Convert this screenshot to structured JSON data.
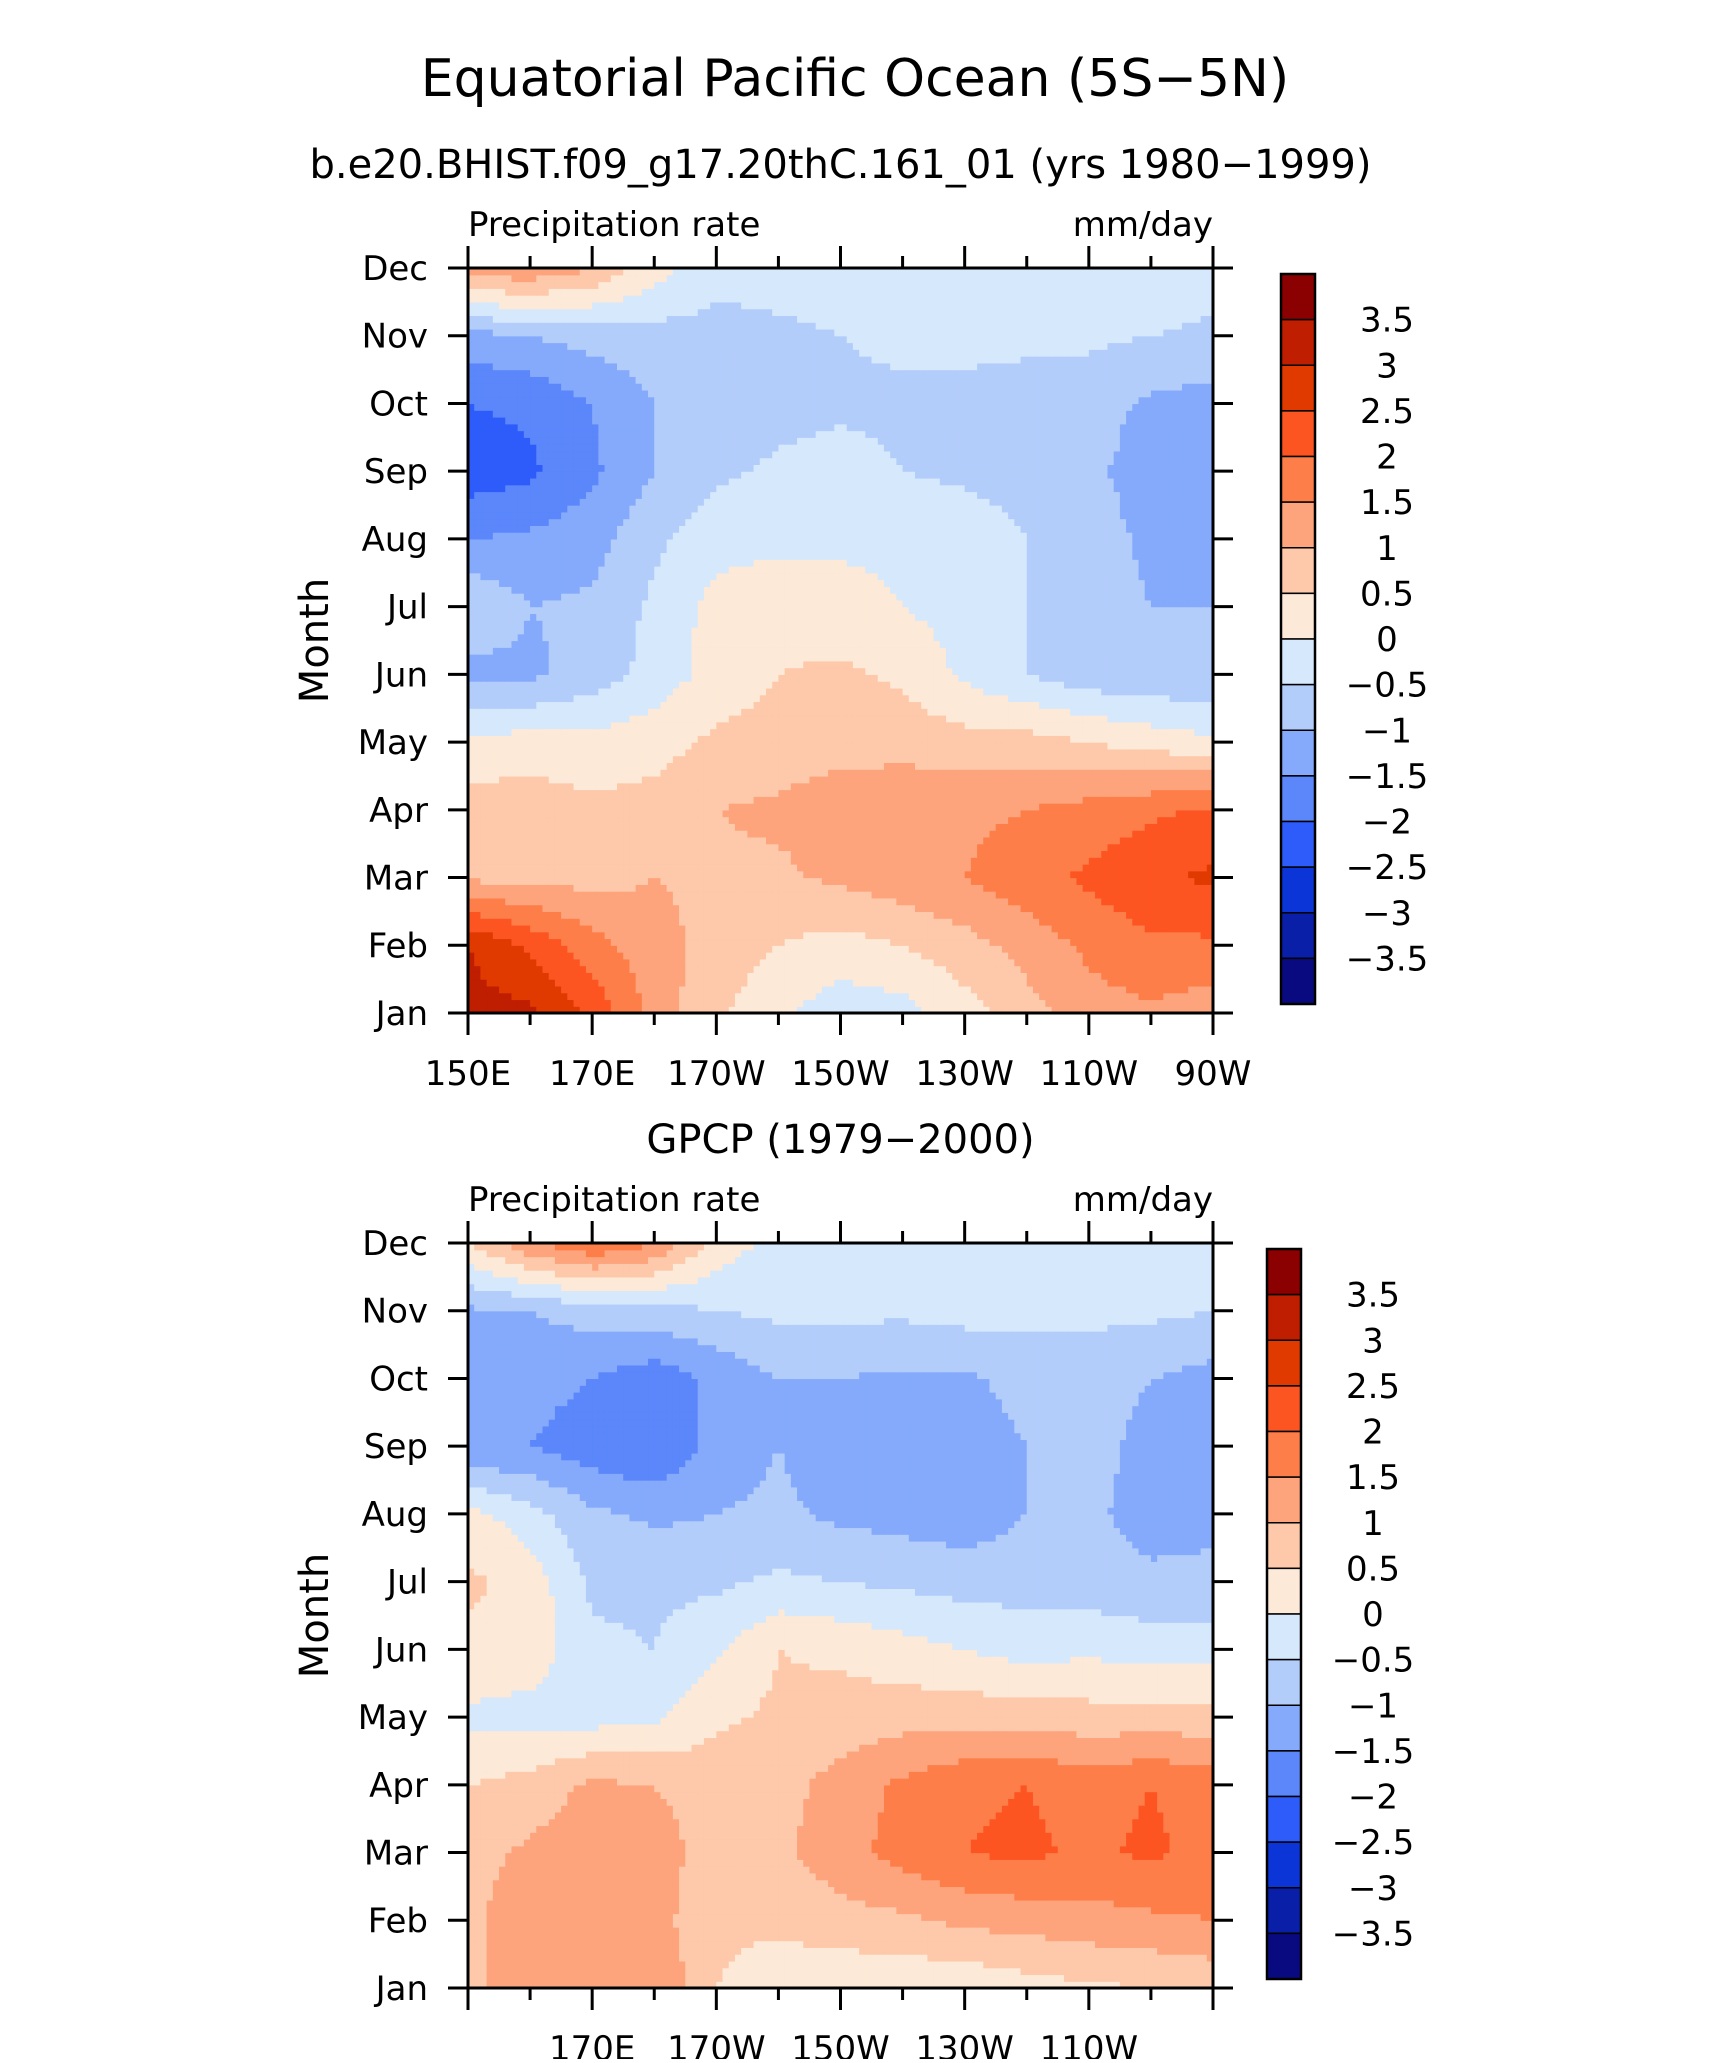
{
  "title": "Equatorial Pacific Ocean (5S−5N)",
  "chart_data": [
    {
      "type": "heatmap",
      "title": "b.e20.BHIST.f09_g17.20thC.161_01 (yrs 1980−1999)",
      "left_label": "Precipitation rate",
      "right_label": "mm/day",
      "ylabel": "Month",
      "xlabel": "",
      "x_ticks": [
        "150E",
        "170E",
        "170W",
        "150W",
        "130W",
        "110W",
        "90W"
      ],
      "x_tick_lon": [
        150,
        170,
        190,
        210,
        230,
        250,
        270
      ],
      "xlim": [
        150,
        270
      ],
      "y_ticks": [
        "Jan",
        "Feb",
        "Mar",
        "Apr",
        "May",
        "Jun",
        "Jul",
        "Aug",
        "Sep",
        "Oct",
        "Nov",
        "Dec"
      ],
      "grid_lon": [
        150,
        160,
        170,
        180,
        190,
        200,
        210,
        220,
        230,
        240,
        250,
        260,
        270
      ],
      "values": [
        [
          3.2,
          3.1,
          2.4,
          1.3,
          0.6,
          0.1,
          -0.3,
          -0.2,
          0.3,
          0.8,
          1.3,
          1.4,
          1.2
        ],
        [
          3.0,
          2.4,
          1.7,
          1.2,
          0.8,
          0.5,
          0.3,
          0.5,
          0.8,
          1.2,
          1.6,
          1.9,
          1.9
        ],
        [
          0.9,
          0.9,
          0.8,
          1.0,
          0.9,
          0.9,
          1.1,
          1.3,
          1.5,
          1.8,
          2.1,
          2.4,
          2.6
        ],
        [
          0.7,
          0.8,
          0.6,
          0.7,
          1.0,
          1.1,
          1.3,
          1.4,
          1.4,
          1.5,
          1.7,
          1.9,
          2.1
        ],
        [
          0.2,
          0.2,
          0.2,
          0.3,
          0.6,
          0.7,
          0.8,
          0.8,
          0.7,
          0.7,
          0.5,
          0.3,
          0.1
        ],
        [
          -1.2,
          -1.1,
          -0.8,
          -0.3,
          0.2,
          0.5,
          0.6,
          0.4,
          -0.1,
          -0.5,
          -0.8,
          -0.9,
          -0.9
        ],
        [
          -0.5,
          -1.0,
          -0.9,
          -0.4,
          0.2,
          0.3,
          0.2,
          0.0,
          -0.2,
          -0.5,
          -0.8,
          -1.0,
          -1.0
        ],
        [
          -1.5,
          -1.4,
          -1.2,
          -0.6,
          -0.2,
          -0.1,
          -0.1,
          -0.1,
          -0.2,
          -0.5,
          -0.8,
          -1.1,
          -1.3
        ],
        [
          -2.3,
          -2.1,
          -1.6,
          -1.0,
          -0.6,
          -0.4,
          -0.3,
          -0.5,
          -0.6,
          -0.7,
          -0.9,
          -1.2,
          -1.3
        ],
        [
          -2.0,
          -1.9,
          -1.5,
          -1.0,
          -0.9,
          -0.7,
          -0.6,
          -0.6,
          -0.6,
          -0.7,
          -0.8,
          -1.1,
          -1.2
        ],
        [
          -1.2,
          -1.0,
          -0.8,
          -0.7,
          -0.7,
          -0.6,
          -0.5,
          -0.4,
          -0.4,
          -0.4,
          -0.4,
          -0.5,
          -0.6
        ],
        [
          1.3,
          1.4,
          1.0,
          0.2,
          -0.3,
          -0.3,
          -0.3,
          -0.3,
          -0.3,
          -0.3,
          -0.2,
          -0.2,
          -0.3
        ]
      ]
    },
    {
      "type": "heatmap",
      "title": "GPCP (1979−2000)",
      "left_label": "Precipitation rate",
      "right_label": "mm/day",
      "ylabel": "Month",
      "xlabel": "",
      "x_ticks": [
        "170E",
        "170W",
        "150W",
        "130W",
        "110W"
      ],
      "x_tick_lon": [
        170,
        190,
        210,
        230,
        250
      ],
      "xlim": [
        150,
        270
      ],
      "y_ticks": [
        "Jan",
        "Feb",
        "Mar",
        "Apr",
        "May",
        "Jun",
        "Jul",
        "Aug",
        "Sep",
        "Oct",
        "Nov",
        "Dec"
      ],
      "grid_lon": [
        150,
        160,
        170,
        180,
        190,
        200,
        210,
        220,
        230,
        240,
        250,
        260,
        270
      ],
      "values": [
        [
          0.9,
          1.2,
          1.5,
          1.5,
          0.5,
          0.2,
          0.1,
          0.1,
          0.1,
          0.3,
          0.4,
          0.5,
          0.6
        ],
        [
          0.9,
          1.3,
          1.4,
          1.2,
          0.6,
          0.6,
          0.8,
          0.9,
          1.1,
          1.2,
          1.3,
          1.4,
          1.5
        ],
        [
          0.8,
          1.1,
          1.3,
          1.2,
          0.8,
          0.9,
          1.3,
          1.7,
          2.0,
          2.1,
          1.9,
          2.1,
          1.8
        ],
        [
          0.5,
          0.7,
          1.1,
          1.0,
          0.8,
          0.8,
          1.2,
          1.6,
          1.9,
          2.0,
          1.8,
          2.0,
          1.8
        ],
        [
          -0.1,
          -0.2,
          -0.2,
          -0.1,
          0.4,
          0.6,
          0.7,
          0.8,
          0.8,
          0.8,
          0.7,
          0.7,
          0.7
        ],
        [
          0.4,
          0.3,
          -0.4,
          -0.5,
          -0.1,
          0.5,
          0.4,
          0.2,
          0.0,
          -0.2,
          -0.1,
          -0.2,
          -0.2
        ],
        [
          0.6,
          0.3,
          -0.6,
          -0.6,
          -0.6,
          -0.4,
          -0.5,
          -0.6,
          -0.7,
          -0.7,
          -0.8,
          -0.9,
          -0.9
        ],
        [
          0.2,
          -0.3,
          -0.9,
          -1.1,
          -1.0,
          -0.9,
          -1.1,
          -1.2,
          -1.3,
          -1.0,
          -0.9,
          -1.2,
          -1.1
        ],
        [
          -1.5,
          -1.5,
          -1.8,
          -2.0,
          -1.3,
          -1.0,
          -1.3,
          -1.3,
          -1.3,
          -1.0,
          -0.8,
          -1.2,
          -1.1
        ],
        [
          -1.3,
          -1.3,
          -1.5,
          -1.8,
          -1.4,
          -1.0,
          -1.0,
          -1.1,
          -1.1,
          -0.8,
          -0.7,
          -1.0,
          -1.2
        ],
        [
          -1.1,
          -1.0,
          -0.8,
          -0.7,
          -0.5,
          -0.4,
          -0.4,
          -0.4,
          -0.3,
          -0.4,
          -0.4,
          -0.4,
          -0.5
        ],
        [
          0.5,
          1.4,
          2.0,
          1.5,
          0.3,
          -0.2,
          -0.3,
          -0.3,
          -0.3,
          -0.3,
          -0.4,
          -0.4,
          -0.4
        ]
      ]
    }
  ],
  "colorbar": {
    "labels": [
      "3.5",
      "3",
      "2.5",
      "2",
      "1.5",
      "1",
      "0.5",
      "0",
      "−0.5",
      "−1",
      "−1.5",
      "−2",
      "−2.5",
      "−3",
      "−3.5"
    ],
    "levels": [
      3.5,
      3,
      2.5,
      2,
      1.5,
      1,
      0.5,
      0,
      -0.5,
      -1,
      -1.5,
      -2,
      -2.5,
      -3,
      -3.5
    ],
    "colors": [
      "#8b0000",
      "#bf1e00",
      "#e03a00",
      "#fd5522",
      "#fd7e48",
      "#fda47c",
      "#fdc9aa",
      "#fde9d7",
      "#d6e8fc",
      "#b3cdfb",
      "#85aafc",
      "#5b87fb",
      "#2e5cfb",
      "#0b35d6",
      "#0a1fa8",
      "#0a0a80"
    ]
  }
}
